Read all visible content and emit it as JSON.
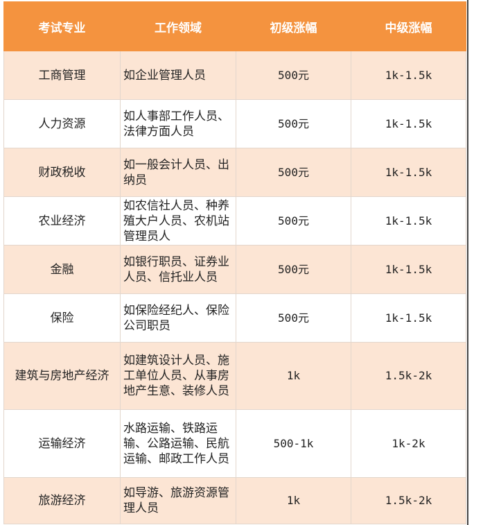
{
  "colors": {
    "header": "#F4933F",
    "row_alt": "#FCE5D4"
  },
  "headers": [
    "考试专业",
    "工作领域",
    "初级涨幅",
    "中级涨幅"
  ],
  "rows": [
    {
      "major": "工商管理",
      "field": "如企业管理人员",
      "junior": "500元",
      "mid": "1k-1.5k"
    },
    {
      "major": "人力资源",
      "field": "如人事部工作人员、法律方面人员",
      "junior": "500元",
      "mid": "1k-1.5k"
    },
    {
      "major": "财政税收",
      "field": "如一般会计人员、出纳员",
      "junior": "500元",
      "mid": "1k-1.5k"
    },
    {
      "major": "农业经济",
      "field": "如农信社人员、种养殖大户人员、农机站管理员人",
      "junior": "500元",
      "mid": "1k-1.5k"
    },
    {
      "major": "金融",
      "field": "如银行职员、证券业人员、信托业人员",
      "junior": "500元",
      "mid": "1k-1.5k"
    },
    {
      "major": "保险",
      "field": "如保险经纪人、保险公司职员",
      "junior": "500元",
      "mid": "1k-1.5k"
    },
    {
      "major": "建筑与房地产经济",
      "field": "如建筑设计人员、施工单位人员、从事房地产生意、装修人员",
      "junior": "1k",
      "mid": "1.5k-2k"
    },
    {
      "major": "运输经济",
      "field": "水路运输、铁路运输、公路运输、民航运输、邮政工作人员",
      "junior": "500-1k",
      "mid": "1k-2k"
    },
    {
      "major": "旅游经济",
      "field": "如导游、旅游资源管理人员",
      "junior": "1k",
      "mid": "1.5k-2k"
    }
  ]
}
